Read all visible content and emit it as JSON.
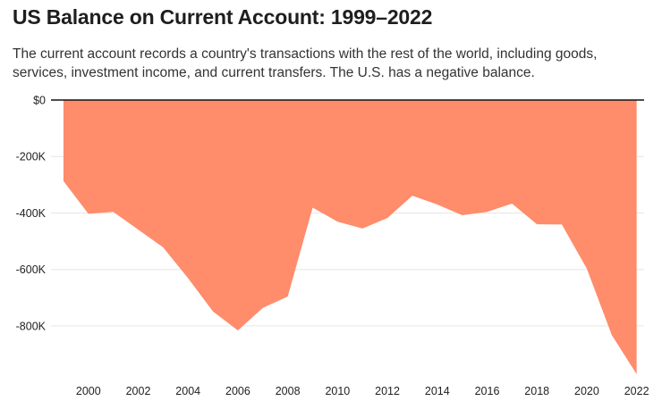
{
  "title": "US Balance on Current Account: 1999–2022",
  "subtitle": "The current account records a country's transactions with the rest of the world, including goods, services, investment income, and current transfers. The U.S. has a negative balance.",
  "chart_data": {
    "type": "area",
    "title": "US Balance on Current Account: 1999–2022",
    "xlabel": "",
    "ylabel": "",
    "color": "#ff8c6b",
    "x": [
      1999,
      2000,
      2001,
      2002,
      2003,
      2004,
      2005,
      2006,
      2007,
      2008,
      2009,
      2010,
      2011,
      2012,
      2013,
      2014,
      2015,
      2016,
      2017,
      2018,
      2019,
      2020,
      2021,
      2022
    ],
    "values": [
      -287,
      -403,
      -396,
      -459,
      -522,
      -631,
      -749,
      -816,
      -736,
      -696,
      -381,
      -431,
      -455,
      -418,
      -339,
      -370,
      -408,
      -396,
      -367,
      -440,
      -441,
      -597,
      -832,
      -971
    ],
    "value_unit": "thousands (K)",
    "xlim": [
      1998.5,
      2022.3
    ],
    "ylim": [
      -990,
      0
    ],
    "x_ticks": [
      2000,
      2002,
      2004,
      2006,
      2008,
      2010,
      2012,
      2014,
      2016,
      2018,
      2020,
      2022
    ],
    "y_ticks": [
      0,
      -200,
      -400,
      -600,
      -800
    ],
    "y_tick_labels": [
      "$0",
      "-200K",
      "-400K",
      "-600K",
      "-800K"
    ],
    "grid": true,
    "legend": "none"
  }
}
